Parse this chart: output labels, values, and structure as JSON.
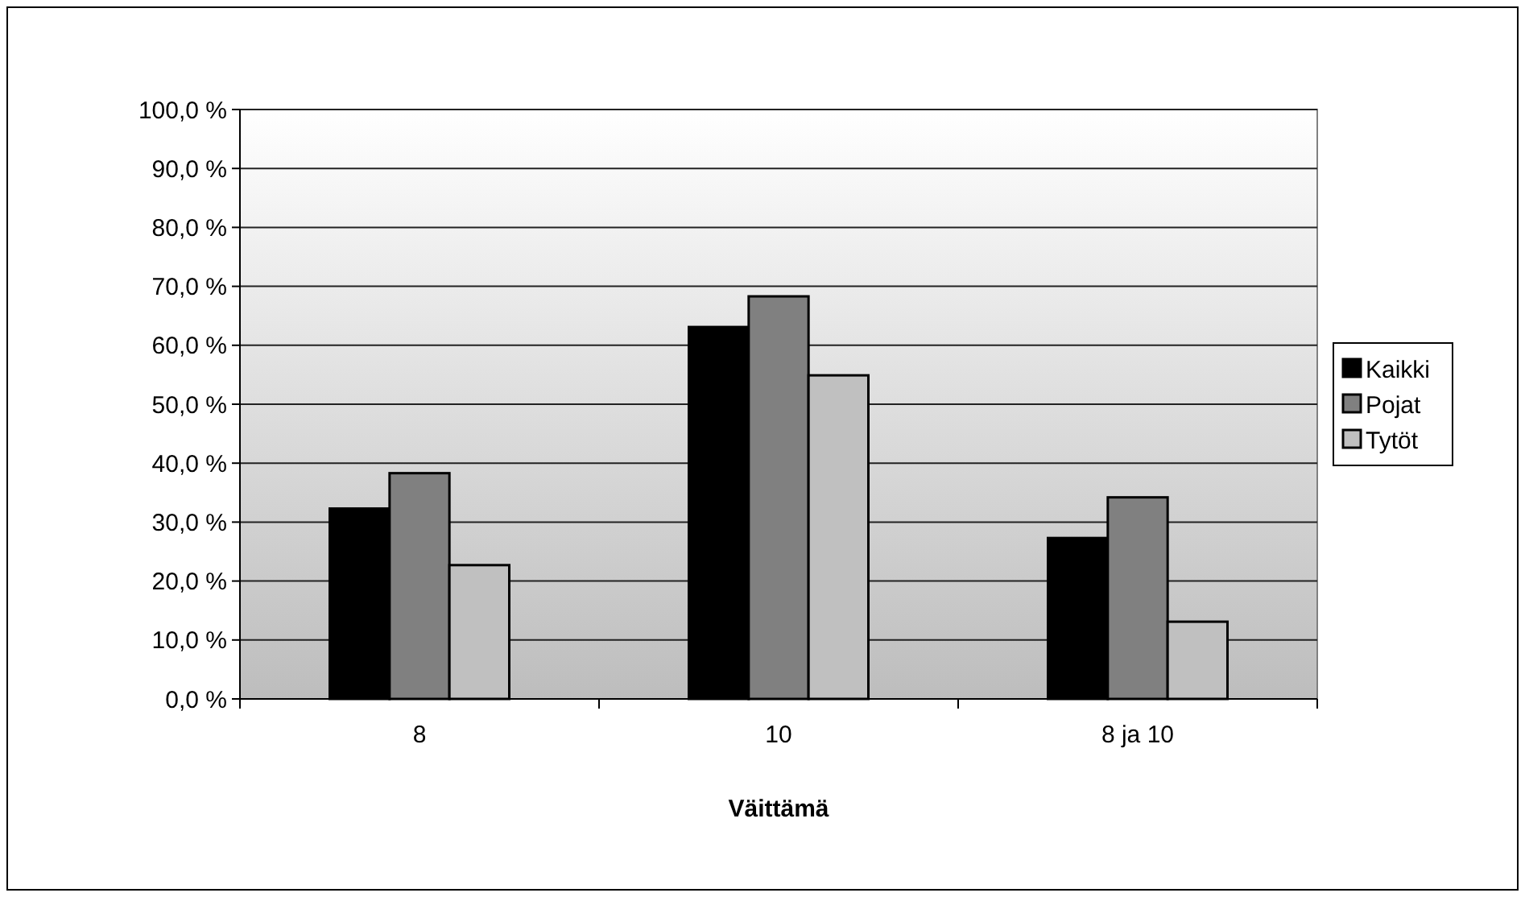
{
  "chart_data": {
    "type": "bar",
    "xlabel": "Väittämä",
    "categories": [
      "8",
      "10",
      "8 ja 10"
    ],
    "series": [
      {
        "name": "Kaikki",
        "color": "#000000",
        "values": [
          32.3,
          63.1,
          27.3
        ]
      },
      {
        "name": "Pojat",
        "color": "#808080",
        "values": [
          38.3,
          68.3,
          34.2
        ]
      },
      {
        "name": "Tytöt",
        "color": "#c0c0c0",
        "values": [
          22.7,
          54.9,
          13.1
        ]
      }
    ],
    "ylim": [
      0,
      100
    ],
    "yticks": [
      {
        "value": 0,
        "label": "0,0 %"
      },
      {
        "value": 10,
        "label": "10,0 %"
      },
      {
        "value": 20,
        "label": "20,0 %"
      },
      {
        "value": 30,
        "label": "30,0 %"
      },
      {
        "value": 40,
        "label": "40,0 %"
      },
      {
        "value": 50,
        "label": "50,0 %"
      },
      {
        "value": 60,
        "label": "60,0 %"
      },
      {
        "value": 70,
        "label": "70,0 %"
      },
      {
        "value": 80,
        "label": "80,0 %"
      },
      {
        "value": 90,
        "label": "90,0 %"
      },
      {
        "value": 100,
        "label": "100,0 %"
      }
    ],
    "grid": "y",
    "legend": "right"
  }
}
